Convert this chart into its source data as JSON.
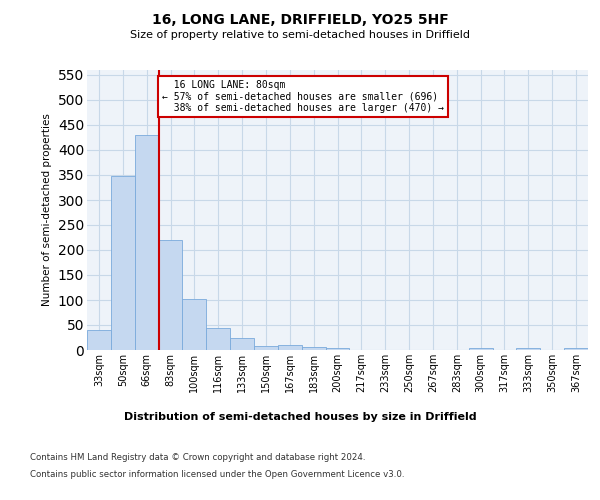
{
  "title": "16, LONG LANE, DRIFFIELD, YO25 5HF",
  "subtitle": "Size of property relative to semi-detached houses in Driffield",
  "xlabel": "Distribution of semi-detached houses by size in Driffield",
  "ylabel": "Number of semi-detached properties",
  "categories": [
    "33sqm",
    "50sqm",
    "66sqm",
    "83sqm",
    "100sqm",
    "116sqm",
    "133sqm",
    "150sqm",
    "167sqm",
    "183sqm",
    "200sqm",
    "217sqm",
    "233sqm",
    "250sqm",
    "267sqm",
    "283sqm",
    "300sqm",
    "317sqm",
    "333sqm",
    "350sqm",
    "367sqm"
  ],
  "values": [
    40,
    348,
    430,
    220,
    103,
    45,
    25,
    8,
    10,
    7,
    5,
    1,
    0,
    1,
    0,
    0,
    5,
    0,
    5,
    0,
    5
  ],
  "bar_color": "#c5d8f0",
  "bar_edge_color": "#7aaadc",
  "grid_color": "#c8d8e8",
  "background_color": "#eef3f9",
  "property_line_x": 2.5,
  "property_label": "16 LONG LANE: 80sqm",
  "pct_smaller": "57% of semi-detached houses are smaller (696)",
  "pct_larger": "38% of semi-detached houses are larger (470)",
  "annotation_box_color": "#ffffff",
  "annotation_box_edge_color": "#cc0000",
  "line_color": "#cc0000",
  "ylim": [
    0,
    560
  ],
  "yticks": [
    0,
    50,
    100,
    150,
    200,
    250,
    300,
    350,
    400,
    450,
    500,
    550
  ],
  "footer1": "Contains HM Land Registry data © Crown copyright and database right 2024.",
  "footer2": "Contains public sector information licensed under the Open Government Licence v3.0."
}
